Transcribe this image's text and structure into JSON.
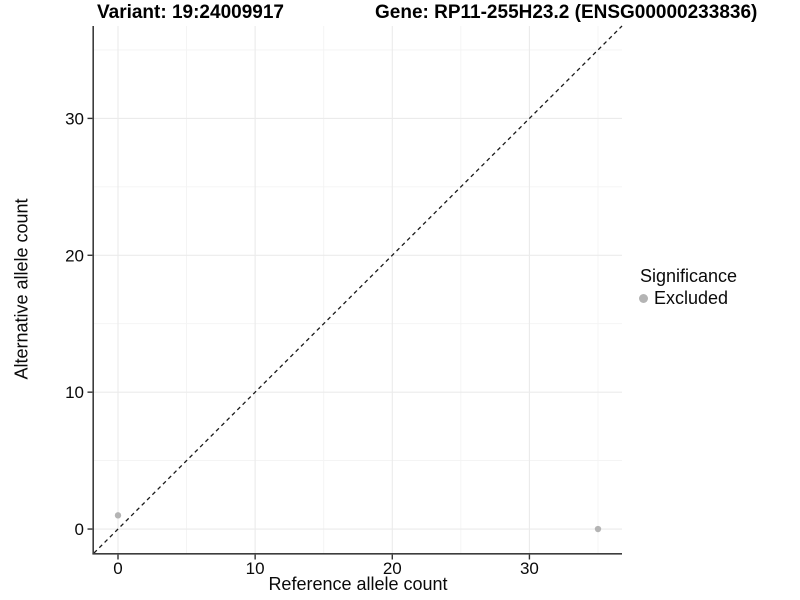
{
  "chart_data": {
    "type": "scatter",
    "titles": {
      "left": "Variant: 19:24009917",
      "right": "Gene: RP11-255H23.2 (ENSG00000233836)"
    },
    "xlabel": "Reference allele count",
    "ylabel": "Alternative allele count",
    "xlim": [
      -1.75,
      36.75
    ],
    "ylim": [
      -1.75,
      36.75
    ],
    "x_major_ticks": [
      0,
      10,
      20,
      30
    ],
    "x_minor_ticks": [
      5,
      15,
      25,
      35
    ],
    "y_major_ticks": [
      0,
      10,
      20,
      30
    ],
    "y_minor_ticks": [
      5,
      15,
      25,
      35
    ],
    "grid": true,
    "identity_line": {
      "style": "dashed",
      "from": [
        -1.75,
        -1.75
      ],
      "to": [
        36.75,
        36.75
      ]
    },
    "series": [
      {
        "name": "Excluded",
        "points": [
          {
            "x": 0,
            "y": 1
          },
          {
            "x": 35,
            "y": 0
          }
        ]
      }
    ],
    "legend": {
      "title": "Significance",
      "position": "right",
      "items": [
        {
          "label": "Excluded",
          "color": "#b4b4b4"
        }
      ]
    },
    "colors": {
      "point": "#b4b4b4",
      "grid_major": "#ebebeb",
      "grid_minor": "#f3f3f3",
      "axis_line": "#3d3d3d",
      "tick_mark": "#333333",
      "tick_label": "#0a0a0a",
      "identity_line": "#1a1a1a",
      "background": "#ffffff"
    }
  }
}
